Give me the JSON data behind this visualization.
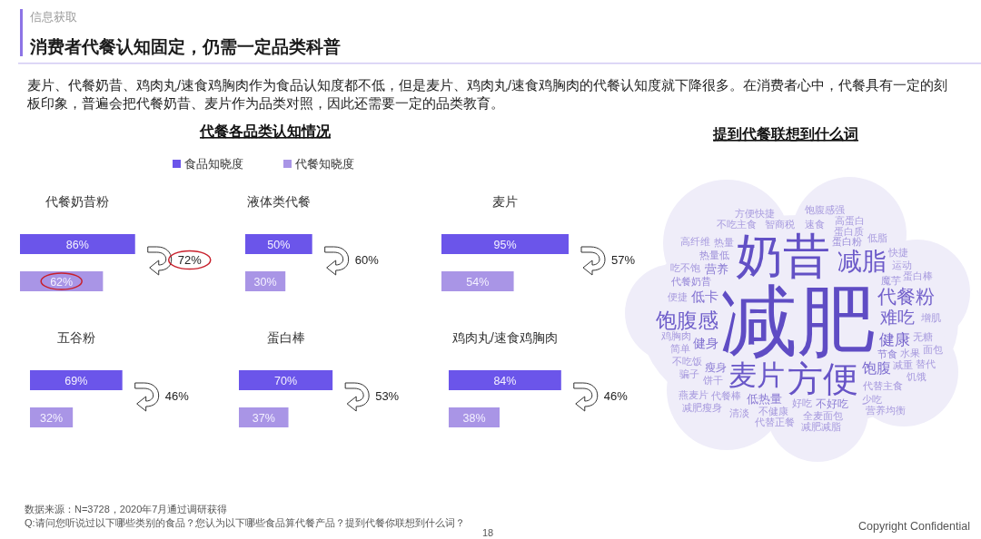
{
  "chart_data": [
    {
      "type": "other",
      "title": "消费者代餐认知固定，仍需一定品类科普",
      "subtitle": "信息获取",
      "annotations": [
        "麦片、代餐奶昔、鸡肉丸/速食鸡胸肉作为食品认知度都不低，但是麦片、鸡肉丸/速食鸡胸肉的代餐认知度就下降很多。在消费者心中，代餐具有一定的刻板印象，普遍会把代餐奶昔、麦片作为品类对照，因此还需要一定的品类教育。",
        "代餐各品类认知情况",
        "数据来源：N=3728，2020年7月通过调研获得",
        "Q:请问您听说过以下哪些类别的食品？您认为以下哪些食品算代餐产品？提到代餐你联想到什么词？",
        "18",
        "Copyright Confidential"
      ]
    },
    {
      "type": "bar",
      "orientation": "horizontal",
      "stacked": true,
      "title": "代餐奶昔粉",
      "categories": [
        null,
        null
      ],
      "legend": "top",
      "series": [
        {
          "name": "食品知晓度",
          "color": "#6b55ea",
          "values": [
            86,
            null
          ],
          "value_labels": [
            "86%",
            null
          ]
        },
        {
          "name": "代餐知晓度",
          "color": "#a995e6",
          "values": [
            null,
            62
          ],
          "value_labels": [
            null,
            "62%"
          ]
        }
      ],
      "annotations": [
        "72%"
      ]
    },
    {
      "type": "bar",
      "orientation": "horizontal",
      "stacked": true,
      "title": "液体类代餐",
      "categories": [
        null,
        null
      ],
      "series": [
        {
          "color": "#6b55ea",
          "values": [
            50,
            null
          ],
          "value_labels": [
            "50%",
            null
          ]
        },
        {
          "color": "#a995e6",
          "values": [
            null,
            30
          ],
          "value_labels": [
            null,
            "30%"
          ]
        }
      ],
      "annotations": [
        "60%"
      ]
    },
    {
      "type": "bar",
      "orientation": "horizontal",
      "stacked": true,
      "title": "麦片",
      "categories": [
        null,
        null
      ],
      "series": [
        {
          "color": "#6b55ea",
          "values": [
            95,
            null
          ],
          "value_labels": [
            "95%",
            null
          ]
        },
        {
          "color": "#a995e6",
          "values": [
            null,
            54
          ],
          "value_labels": [
            null,
            "54%"
          ]
        }
      ],
      "annotations": [
        "57%"
      ]
    },
    {
      "type": "bar",
      "orientation": "horizontal",
      "stacked": true,
      "title": "五谷粉",
      "categories": [
        null,
        null
      ],
      "series": [
        {
          "color": "#6b55ea",
          "values": [
            69,
            null
          ],
          "value_labels": [
            "69%",
            null
          ]
        },
        {
          "color": "#a995e6",
          "values": [
            null,
            32
          ],
          "value_labels": [
            null,
            "32%"
          ]
        }
      ],
      "annotations": [
        "46%"
      ]
    },
    {
      "type": "bar",
      "orientation": "horizontal",
      "stacked": true,
      "title": "蛋白棒",
      "categories": [
        null,
        null
      ],
      "series": [
        {
          "color": "#6b55ea",
          "values": [
            70,
            null
          ],
          "value_labels": [
            "70%",
            null
          ]
        },
        {
          "color": "#a995e6",
          "values": [
            null,
            37
          ],
          "value_labels": [
            null,
            "37%"
          ]
        }
      ],
      "annotations": [
        "53%"
      ]
    },
    {
      "type": "bar",
      "orientation": "horizontal",
      "stacked": true,
      "title": "鸡肉丸/速食鸡胸肉",
      "categories": [
        null,
        null
      ],
      "series": [
        {
          "color": "#6b55ea",
          "values": [
            84,
            null
          ],
          "value_labels": [
            "84%",
            null
          ]
        },
        {
          "color": "#a995e6",
          "values": [
            null,
            38
          ],
          "value_labels": [
            null,
            "38%"
          ]
        }
      ],
      "annotations": [
        "46%"
      ]
    },
    {
      "type": "other",
      "title": "提到代餐联想到什么词",
      "categories": [
        "减肥",
        "奶昔",
        "方便",
        "麦片",
        "减脂",
        "饱腹感",
        "代餐粉",
        "难吃",
        "健康",
        "饱腹",
        "低卡",
        "健身",
        "营养",
        "低热量",
        "瘦身",
        "不好吃",
        "节食",
        "代餐奶昔",
        "蛋白粉",
        "热量低",
        "魔芋",
        "代替主食",
        "好吃",
        "不健康",
        "代餐棒",
        "饼干",
        "水果",
        "不吃饭",
        "减重",
        "简单",
        "鸡胸肉",
        "智商税",
        "便捷",
        "热量",
        "速食",
        "蛋白质",
        "运动",
        "无糖",
        "全麦面包",
        "吃不饱",
        "少吃",
        "骗子",
        "低脂",
        "蛋白棒",
        "快捷",
        "代替正餐",
        "不吃主食",
        "增肌",
        "高蛋白",
        "清淡",
        "面包",
        "减肥减脂",
        "方便快捷",
        "饱腹感强",
        "营养均衡",
        "减肥瘦身",
        "燕麦片",
        "替代",
        "饥饿",
        "高纤维"
      ]
    }
  ]
}
